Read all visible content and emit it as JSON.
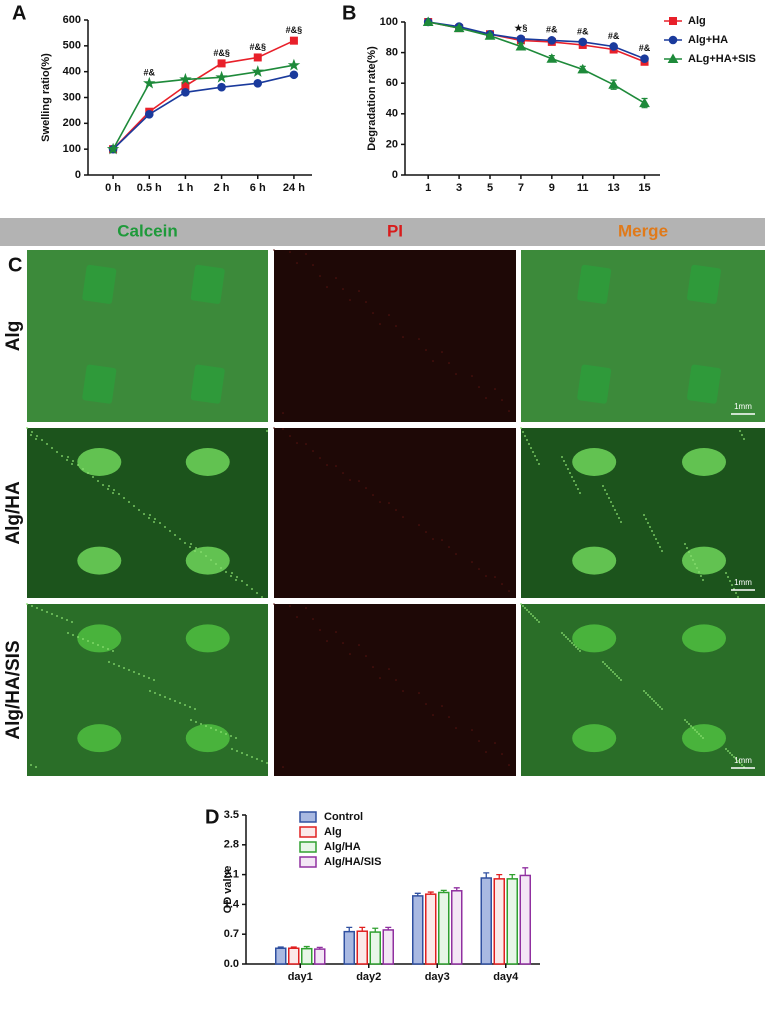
{
  "chart_data": [
    {
      "type": "line",
      "panel": "A",
      "ylabel": "Swelling ratio(%)",
      "categories": [
        "0 h",
        "0.5 h",
        "1 h",
        "2 h",
        "6 h",
        "24 h"
      ],
      "ylim": [
        0,
        600
      ],
      "yticks": [
        0,
        100,
        200,
        300,
        400,
        500,
        600
      ],
      "series": [
        {
          "color": "#e8202a",
          "marker": "square",
          "values": [
            100,
            245,
            345,
            432,
            455,
            520
          ]
        },
        {
          "color": "#1a3a9c",
          "marker": "circle",
          "values": [
            100,
            235,
            320,
            340,
            355,
            388
          ]
        },
        {
          "color": "#1e8a3a",
          "marker": "star",
          "values": [
            100,
            355,
            370,
            378,
            400,
            425
          ]
        }
      ],
      "annotations": [
        {
          "text": "#&",
          "x": "0.5 h"
        },
        {
          "text": "#&§",
          "x": "2 h"
        },
        {
          "text": "#&§",
          "x": "6 h"
        },
        {
          "text": "#&§",
          "x": "24 h"
        }
      ]
    },
    {
      "type": "line",
      "panel": "B",
      "ylabel": "Degradation rate(%)",
      "x": [
        1,
        3,
        5,
        7,
        9,
        11,
        13,
        15
      ],
      "xlim": [
        -0.5,
        16
      ],
      "xticks": [
        1,
        3,
        5,
        7,
        9,
        11,
        13,
        15
      ],
      "ylim": [
        0,
        100
      ],
      "yticks": [
        0,
        20,
        40,
        60,
        80,
        100
      ],
      "legend": "upper right",
      "series": [
        {
          "name": "Alg",
          "color": "#e8202a",
          "marker": "square",
          "values": [
            100,
            96,
            92,
            88,
            87,
            85,
            82,
            74
          ]
        },
        {
          "name": "Alg+HA",
          "color": "#1a3a9c",
          "marker": "circle",
          "values": [
            100,
            97,
            92,
            89,
            88,
            87,
            84,
            76
          ]
        },
        {
          "name": "ALg+HA+SIS",
          "color": "#1e8a3a",
          "marker": "triangle",
          "values": [
            100,
            96,
            91,
            84,
            76,
            69,
            59,
            47
          ],
          "errors": [
            0,
            1,
            1,
            2,
            2,
            2,
            3,
            3
          ]
        }
      ],
      "annotations": [
        {
          "text": "★§",
          "x": 7
        },
        {
          "text": "#&",
          "x": 9
        },
        {
          "text": "#&",
          "x": 11
        },
        {
          "text": "#&",
          "x": 13
        },
        {
          "text": "#&",
          "x": 15
        }
      ]
    },
    {
      "type": "bar",
      "panel": "D",
      "ylabel": "OD value",
      "categories": [
        "day1",
        "day2",
        "day3",
        "day4"
      ],
      "ylim": [
        0,
        3.5
      ],
      "yticks": [
        {
          "value": 0,
          "label": "0.0"
        },
        0.7,
        1.4,
        2.1,
        2.8,
        3.5
      ],
      "legend": "upper left",
      "series": [
        {
          "name": "Control",
          "color": "#3050a0",
          "fill": "#a9b9e2",
          "values": [
            0.37,
            0.76,
            1.6,
            2.02
          ],
          "errors": [
            0.03,
            0.1,
            0.06,
            0.12
          ]
        },
        {
          "name": "Alg",
          "color": "#e02020",
          "fill": "#fbe9e9",
          "values": [
            0.37,
            0.77,
            1.64,
            2.0
          ],
          "errors": [
            0.03,
            0.09,
            0.05,
            0.1
          ]
        },
        {
          "name": "Alg/HA",
          "color": "#30a030",
          "fill": "#e8f6e8",
          "values": [
            0.36,
            0.75,
            1.68,
            2.0
          ],
          "errors": [
            0.05,
            0.09,
            0.05,
            0.1
          ]
        },
        {
          "name": "Alg/HA/SIS",
          "color": "#9030a0",
          "fill": "#f3e6f5",
          "values": [
            0.35,
            0.8,
            1.72,
            2.08
          ],
          "errors": [
            0.04,
            0.06,
            0.07,
            0.18
          ]
        }
      ]
    }
  ],
  "figure": {
    "panel": "C",
    "columns": [
      "Calcein",
      "PI",
      "Merge"
    ],
    "rows": [
      "Alg",
      "Alg/HA",
      "Alg/HA/SIS"
    ],
    "scale_bar": "1mm"
  }
}
